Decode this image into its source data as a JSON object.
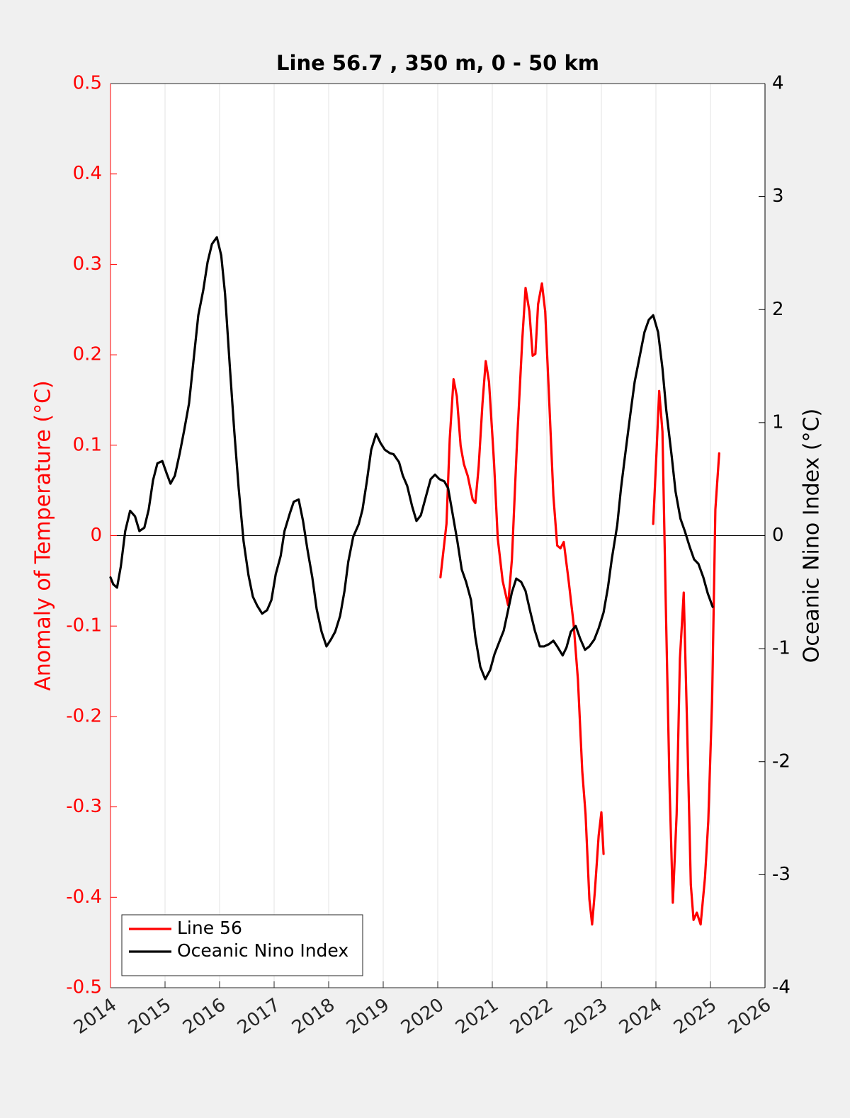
{
  "chart_data": {
    "type": "line",
    "title": "Line 56.7 , 350 m, 0 - 50 km",
    "ylabel": "Anomaly of Temperature (°C)",
    "y2label": "Oceanic Nino Index (°C)",
    "xlim": [
      2014,
      2026
    ],
    "xticks": [
      2014,
      2015,
      2016,
      2017,
      2018,
      2019,
      2020,
      2021,
      2022,
      2023,
      2024,
      2025,
      2026
    ],
    "ylim": [
      -0.5,
      0.5
    ],
    "yticks": [
      -0.5,
      -0.4,
      -0.3,
      -0.2,
      -0.1,
      0,
      0.1,
      0.2,
      0.3,
      0.4,
      0.5
    ],
    "y2lim": [
      -4,
      4
    ],
    "y2ticks": [
      -4,
      -3,
      -2,
      -1,
      0,
      1,
      2,
      3,
      4
    ],
    "xgrid": true,
    "legend": "lower left",
    "series": [
      {
        "name": "Line 56",
        "color": "#ff0000",
        "x": [
          2020.05,
          2020.16,
          2020.22,
          2020.29,
          2020.35,
          2020.42,
          2020.48,
          2020.55,
          2020.64,
          2020.69,
          2020.75,
          2020.82,
          2020.88,
          2020.94,
          2021.03,
          2021.1,
          2021.19,
          2021.29,
          2021.36,
          2021.45,
          2021.55,
          2021.61,
          2021.68,
          2021.74,
          2021.79,
          2021.84,
          2021.91,
          2021.97,
          2022.04,
          2022.12,
          2022.19,
          2022.25,
          2022.31,
          2022.4,
          2022.49,
          2022.57,
          2022.65,
          2022.71,
          2022.78,
          2022.83,
          2022.88,
          2022.95,
          2023.0,
          2023.04,
          null,
          2023.95,
          2024.01,
          2024.06,
          2024.12,
          2024.18,
          2024.25,
          2024.31,
          2024.38,
          2024.44,
          2024.51,
          2024.57,
          2024.64,
          2024.69,
          2024.75,
          2024.82,
          2024.9,
          2024.96,
          2025.03,
          2025.09,
          2025.16
        ],
        "values": [
          -0.046,
          0.013,
          0.107,
          0.173,
          0.154,
          0.099,
          0.079,
          0.066,
          0.04,
          0.036,
          0.076,
          0.146,
          0.193,
          0.17,
          0.083,
          -0.003,
          -0.05,
          -0.077,
          -0.026,
          0.099,
          0.217,
          0.274,
          0.248,
          0.199,
          0.201,
          0.256,
          0.279,
          0.248,
          0.154,
          0.044,
          -0.011,
          -0.014,
          -0.007,
          -0.05,
          -0.097,
          -0.159,
          -0.261,
          -0.308,
          -0.402,
          -0.43,
          -0.394,
          -0.332,
          -0.306,
          -0.352,
          null,
          0.013,
          0.091,
          0.16,
          0.115,
          -0.073,
          -0.277,
          -0.406,
          -0.308,
          -0.136,
          -0.063,
          -0.206,
          -0.386,
          -0.425,
          -0.417,
          -0.43,
          -0.378,
          -0.316,
          -0.183,
          0.029,
          0.091
        ]
      },
      {
        "name": "Oceanic Nino Index",
        "color": "#000000",
        "axis": "y2",
        "x": [
          2014.0,
          2014.05,
          2014.12,
          2014.19,
          2014.27,
          2014.36,
          2014.45,
          2014.53,
          2014.62,
          2014.7,
          2014.78,
          2014.86,
          2014.95,
          2015.03,
          2015.1,
          2015.18,
          2015.27,
          2015.35,
          2015.44,
          2015.52,
          2015.61,
          2015.7,
          2015.78,
          2015.86,
          2015.95,
          2016.03,
          2016.1,
          2016.19,
          2016.27,
          2016.35,
          2016.44,
          2016.53,
          2016.61,
          2016.69,
          2016.78,
          2016.87,
          2016.95,
          2017.03,
          2017.12,
          2017.19,
          2017.29,
          2017.36,
          2017.45,
          2017.53,
          2017.61,
          2017.7,
          2017.78,
          2017.87,
          2017.96,
          2018.04,
          2018.12,
          2018.21,
          2018.29,
          2018.36,
          2018.45,
          2018.55,
          2018.62,
          2018.7,
          2018.78,
          2018.87,
          2018.95,
          2019.03,
          2019.12,
          2019.19,
          2019.29,
          2019.36,
          2019.44,
          2019.53,
          2019.61,
          2019.69,
          2019.78,
          2019.87,
          2019.95,
          2020.03,
          2020.12,
          2020.19,
          2020.27,
          2020.36,
          2020.44,
          2020.52,
          2020.61,
          2020.69,
          2020.78,
          2020.87,
          2020.96,
          2021.04,
          2021.12,
          2021.21,
          2021.29,
          2021.36,
          2021.44,
          2021.53,
          2021.61,
          2021.69,
          2021.78,
          2021.87,
          2021.95,
          2022.04,
          2022.12,
          2022.19,
          2022.29,
          2022.36,
          2022.44,
          2022.53,
          2022.61,
          2022.7,
          2022.78,
          2022.87,
          2022.95,
          2023.04,
          2023.12,
          2023.19,
          2023.29,
          2023.36,
          2023.44,
          2023.53,
          2023.61,
          2023.7,
          2023.79,
          2023.87,
          2023.95,
          2024.04,
          2024.12,
          2024.19,
          2024.29,
          2024.36,
          2024.45,
          2024.53,
          2024.62,
          2024.7,
          2024.78,
          2024.87,
          2024.95,
          2025.04
        ],
        "values": [
          -0.37,
          -0.43,
          -0.46,
          -0.27,
          0.04,
          0.22,
          0.17,
          0.04,
          0.07,
          0.23,
          0.49,
          0.64,
          0.66,
          0.55,
          0.46,
          0.53,
          0.73,
          0.93,
          1.17,
          1.54,
          1.95,
          2.17,
          2.42,
          2.58,
          2.64,
          2.48,
          2.14,
          1.48,
          0.92,
          0.42,
          -0.05,
          -0.35,
          -0.54,
          -0.62,
          -0.69,
          -0.66,
          -0.57,
          -0.34,
          -0.18,
          0.04,
          0.2,
          0.3,
          0.32,
          0.13,
          -0.12,
          -0.37,
          -0.65,
          -0.85,
          -0.98,
          -0.92,
          -0.85,
          -0.71,
          -0.49,
          -0.23,
          -0.01,
          0.1,
          0.23,
          0.48,
          0.76,
          0.9,
          0.82,
          0.76,
          0.73,
          0.72,
          0.65,
          0.53,
          0.44,
          0.26,
          0.13,
          0.18,
          0.34,
          0.5,
          0.54,
          0.5,
          0.48,
          0.42,
          0.2,
          -0.05,
          -0.3,
          -0.41,
          -0.57,
          -0.9,
          -1.16,
          -1.27,
          -1.19,
          -1.05,
          -0.95,
          -0.84,
          -0.66,
          -0.5,
          -0.38,
          -0.41,
          -0.49,
          -0.66,
          -0.84,
          -0.98,
          -0.98,
          -0.96,
          -0.93,
          -0.98,
          -1.06,
          -0.99,
          -0.85,
          -0.8,
          -0.91,
          -1.01,
          -0.98,
          -0.92,
          -0.82,
          -0.68,
          -0.46,
          -0.21,
          0.09,
          0.42,
          0.73,
          1.07,
          1.36,
          1.58,
          1.8,
          1.91,
          1.95,
          1.8,
          1.48,
          1.11,
          0.7,
          0.39,
          0.15,
          0.04,
          -0.1,
          -0.21,
          -0.25,
          -0.37,
          -0.51,
          -0.63
        ]
      }
    ]
  }
}
